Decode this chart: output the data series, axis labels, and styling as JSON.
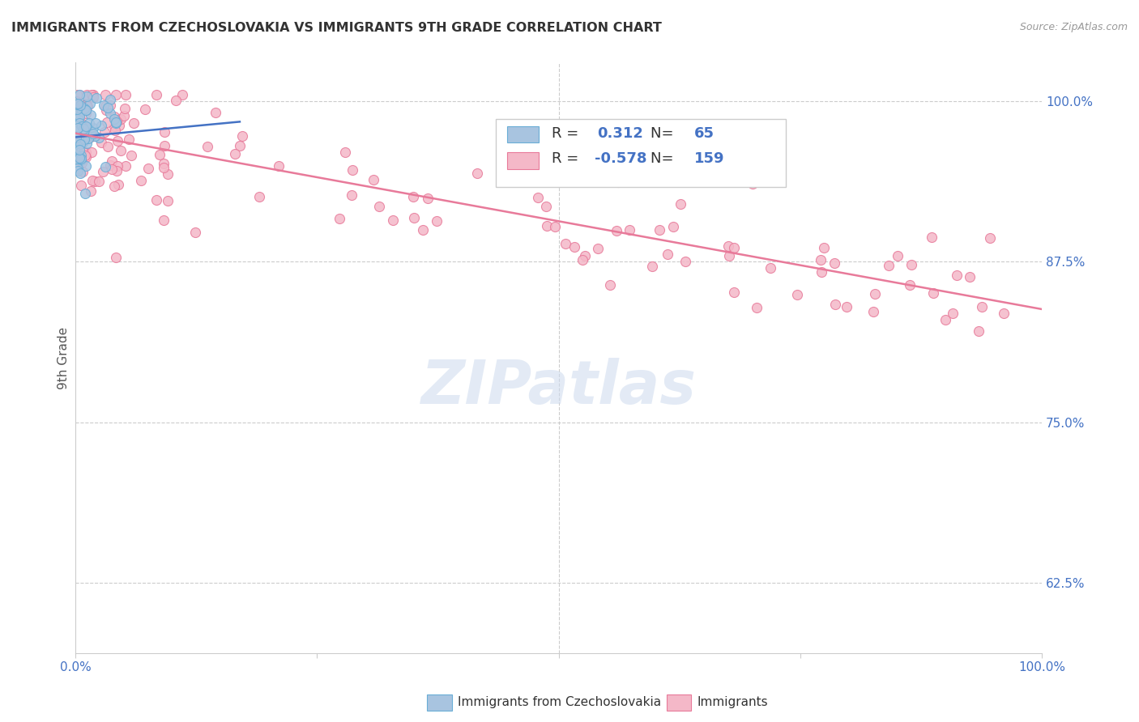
{
  "title": "IMMIGRANTS FROM CZECHOSLOVAKIA VS IMMIGRANTS 9TH GRADE CORRELATION CHART",
  "source": "Source: ZipAtlas.com",
  "ylabel": "9th Grade",
  "yticks": [
    0.625,
    0.75,
    0.875,
    1.0
  ],
  "ytick_labels": [
    "62.5%",
    "75.0%",
    "87.5%",
    "100.0%"
  ],
  "xlim": [
    0.0,
    1.0
  ],
  "ylim": [
    0.57,
    1.03
  ],
  "blue_R": 0.312,
  "blue_N": 65,
  "pink_R": -0.578,
  "pink_N": 159,
  "blue_color": "#a8c4e0",
  "blue_edge": "#6aaed6",
  "pink_color": "#f4b8c8",
  "pink_edge": "#e87a9a",
  "blue_line_color": "#4472c4",
  "pink_line_color": "#e87a9a",
  "legend_label_blue": "Immigrants from Czechoslovakia",
  "legend_label_pink": "Immigrants",
  "watermark": "ZIPatlas"
}
